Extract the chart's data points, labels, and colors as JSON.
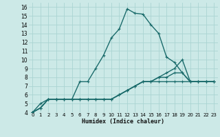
{
  "xlabel": "Humidex (Indice chaleur)",
  "ylabel": "",
  "bg_color": "#cce9e7",
  "grid_color": "#aad4d2",
  "line_color": "#1a6b6b",
  "xlim": [
    -0.5,
    23.5
  ],
  "ylim": [
    4,
    16.5
  ],
  "xticks": [
    0,
    1,
    2,
    3,
    4,
    5,
    6,
    7,
    8,
    9,
    10,
    11,
    12,
    13,
    14,
    15,
    16,
    17,
    18,
    19,
    20,
    21,
    22,
    23
  ],
  "yticks": [
    4,
    5,
    6,
    7,
    8,
    9,
    10,
    11,
    12,
    13,
    14,
    15,
    16
  ],
  "series": [
    [
      4.0,
      5.0,
      5.5,
      5.5,
      5.5,
      5.5,
      7.5,
      7.5,
      9.0,
      10.5,
      12.5,
      13.5,
      15.8,
      15.3,
      15.2,
      14.0,
      13.0,
      10.3,
      9.7,
      8.5,
      7.5,
      7.5,
      7.5,
      7.5
    ],
    [
      4.0,
      4.5,
      5.5,
      5.5,
      5.5,
      5.5,
      5.5,
      5.5,
      5.5,
      5.5,
      5.5,
      6.0,
      6.5,
      7.0,
      7.5,
      7.5,
      8.0,
      8.5,
      9.0,
      10.0,
      7.5,
      7.5,
      7.5,
      7.5
    ],
    [
      4.0,
      4.5,
      5.5,
      5.5,
      5.5,
      5.5,
      5.5,
      5.5,
      5.5,
      5.5,
      5.5,
      6.0,
      6.5,
      7.0,
      7.5,
      7.5,
      8.0,
      8.0,
      8.5,
      8.5,
      7.5,
      7.5,
      7.5,
      7.5
    ],
    [
      4.0,
      4.5,
      5.5,
      5.5,
      5.5,
      5.5,
      5.5,
      5.5,
      5.5,
      5.5,
      5.5,
      6.0,
      6.5,
      7.0,
      7.5,
      7.5,
      7.5,
      7.5,
      7.5,
      7.5,
      7.5,
      7.5,
      7.5,
      7.5
    ]
  ]
}
